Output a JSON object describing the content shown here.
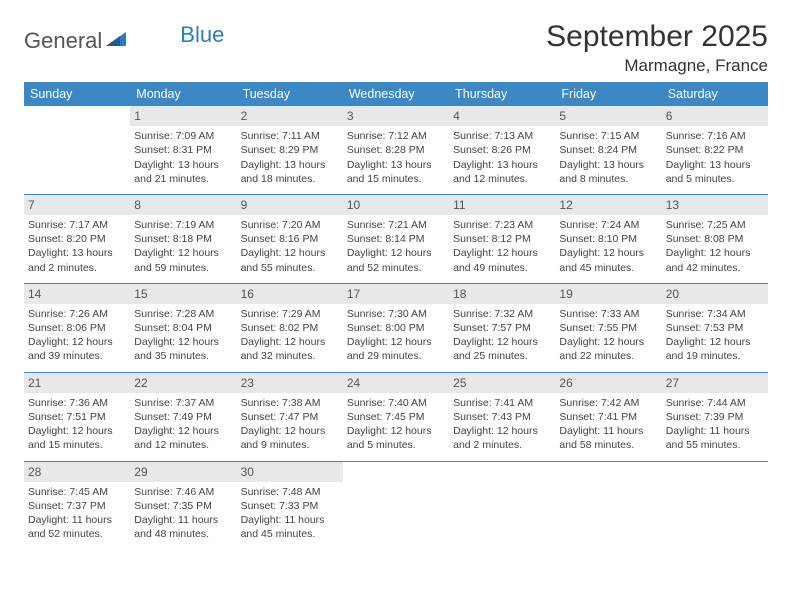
{
  "logo": {
    "part1": "General",
    "part2": "Blue"
  },
  "title": "September 2025",
  "location": "Marmagne, France",
  "weekday_header_bg": "#3b88c4",
  "weekday_header_fg": "#ffffff",
  "rule_color": "#3b88c4",
  "daynum_bg": "#e8e8e8",
  "weekdays": [
    "Sunday",
    "Monday",
    "Tuesday",
    "Wednesday",
    "Thursday",
    "Friday",
    "Saturday"
  ],
  "weeks": [
    [
      null,
      {
        "n": "1",
        "sunrise": "7:09 AM",
        "sunset": "8:31 PM",
        "dl1": "Daylight: 13 hours",
        "dl2": "and 21 minutes."
      },
      {
        "n": "2",
        "sunrise": "7:11 AM",
        "sunset": "8:29 PM",
        "dl1": "Daylight: 13 hours",
        "dl2": "and 18 minutes."
      },
      {
        "n": "3",
        "sunrise": "7:12 AM",
        "sunset": "8:28 PM",
        "dl1": "Daylight: 13 hours",
        "dl2": "and 15 minutes."
      },
      {
        "n": "4",
        "sunrise": "7:13 AM",
        "sunset": "8:26 PM",
        "dl1": "Daylight: 13 hours",
        "dl2": "and 12 minutes."
      },
      {
        "n": "5",
        "sunrise": "7:15 AM",
        "sunset": "8:24 PM",
        "dl1": "Daylight: 13 hours",
        "dl2": "and 8 minutes."
      },
      {
        "n": "6",
        "sunrise": "7:16 AM",
        "sunset": "8:22 PM",
        "dl1": "Daylight: 13 hours",
        "dl2": "and 5 minutes."
      }
    ],
    [
      {
        "n": "7",
        "sunrise": "7:17 AM",
        "sunset": "8:20 PM",
        "dl1": "Daylight: 13 hours",
        "dl2": "and 2 minutes."
      },
      {
        "n": "8",
        "sunrise": "7:19 AM",
        "sunset": "8:18 PM",
        "dl1": "Daylight: 12 hours",
        "dl2": "and 59 minutes."
      },
      {
        "n": "9",
        "sunrise": "7:20 AM",
        "sunset": "8:16 PM",
        "dl1": "Daylight: 12 hours",
        "dl2": "and 55 minutes."
      },
      {
        "n": "10",
        "sunrise": "7:21 AM",
        "sunset": "8:14 PM",
        "dl1": "Daylight: 12 hours",
        "dl2": "and 52 minutes."
      },
      {
        "n": "11",
        "sunrise": "7:23 AM",
        "sunset": "8:12 PM",
        "dl1": "Daylight: 12 hours",
        "dl2": "and 49 minutes."
      },
      {
        "n": "12",
        "sunrise": "7:24 AM",
        "sunset": "8:10 PM",
        "dl1": "Daylight: 12 hours",
        "dl2": "and 45 minutes."
      },
      {
        "n": "13",
        "sunrise": "7:25 AM",
        "sunset": "8:08 PM",
        "dl1": "Daylight: 12 hours",
        "dl2": "and 42 minutes."
      }
    ],
    [
      {
        "n": "14",
        "sunrise": "7:26 AM",
        "sunset": "8:06 PM",
        "dl1": "Daylight: 12 hours",
        "dl2": "and 39 minutes."
      },
      {
        "n": "15",
        "sunrise": "7:28 AM",
        "sunset": "8:04 PM",
        "dl1": "Daylight: 12 hours",
        "dl2": "and 35 minutes."
      },
      {
        "n": "16",
        "sunrise": "7:29 AM",
        "sunset": "8:02 PM",
        "dl1": "Daylight: 12 hours",
        "dl2": "and 32 minutes."
      },
      {
        "n": "17",
        "sunrise": "7:30 AM",
        "sunset": "8:00 PM",
        "dl1": "Daylight: 12 hours",
        "dl2": "and 29 minutes."
      },
      {
        "n": "18",
        "sunrise": "7:32 AM",
        "sunset": "7:57 PM",
        "dl1": "Daylight: 12 hours",
        "dl2": "and 25 minutes."
      },
      {
        "n": "19",
        "sunrise": "7:33 AM",
        "sunset": "7:55 PM",
        "dl1": "Daylight: 12 hours",
        "dl2": "and 22 minutes."
      },
      {
        "n": "20",
        "sunrise": "7:34 AM",
        "sunset": "7:53 PM",
        "dl1": "Daylight: 12 hours",
        "dl2": "and 19 minutes."
      }
    ],
    [
      {
        "n": "21",
        "sunrise": "7:36 AM",
        "sunset": "7:51 PM",
        "dl1": "Daylight: 12 hours",
        "dl2": "and 15 minutes."
      },
      {
        "n": "22",
        "sunrise": "7:37 AM",
        "sunset": "7:49 PM",
        "dl1": "Daylight: 12 hours",
        "dl2": "and 12 minutes."
      },
      {
        "n": "23",
        "sunrise": "7:38 AM",
        "sunset": "7:47 PM",
        "dl1": "Daylight: 12 hours",
        "dl2": "and 9 minutes."
      },
      {
        "n": "24",
        "sunrise": "7:40 AM",
        "sunset": "7:45 PM",
        "dl1": "Daylight: 12 hours",
        "dl2": "and 5 minutes."
      },
      {
        "n": "25",
        "sunrise": "7:41 AM",
        "sunset": "7:43 PM",
        "dl1": "Daylight: 12 hours",
        "dl2": "and 2 minutes."
      },
      {
        "n": "26",
        "sunrise": "7:42 AM",
        "sunset": "7:41 PM",
        "dl1": "Daylight: 11 hours",
        "dl2": "and 58 minutes."
      },
      {
        "n": "27",
        "sunrise": "7:44 AM",
        "sunset": "7:39 PM",
        "dl1": "Daylight: 11 hours",
        "dl2": "and 55 minutes."
      }
    ],
    [
      {
        "n": "28",
        "sunrise": "7:45 AM",
        "sunset": "7:37 PM",
        "dl1": "Daylight: 11 hours",
        "dl2": "and 52 minutes."
      },
      {
        "n": "29",
        "sunrise": "7:46 AM",
        "sunset": "7:35 PM",
        "dl1": "Daylight: 11 hours",
        "dl2": "and 48 minutes."
      },
      {
        "n": "30",
        "sunrise": "7:48 AM",
        "sunset": "7:33 PM",
        "dl1": "Daylight: 11 hours",
        "dl2": "and 45 minutes."
      },
      null,
      null,
      null,
      null
    ]
  ],
  "labels": {
    "sunrise": "Sunrise: ",
    "sunset": "Sunset: "
  }
}
